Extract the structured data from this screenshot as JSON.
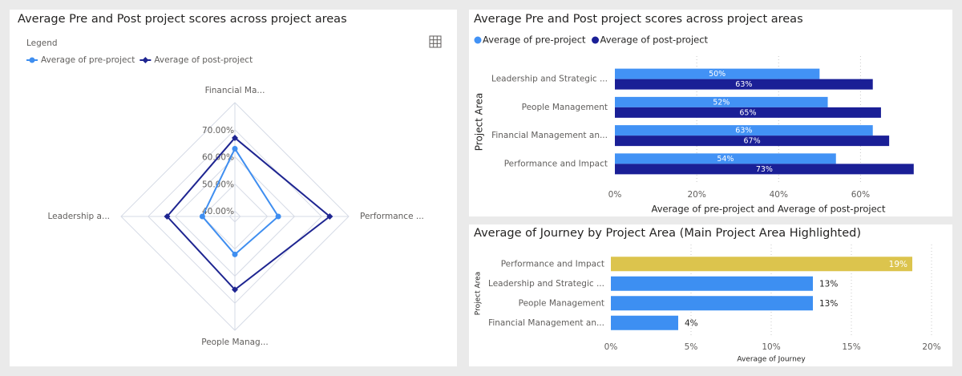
{
  "chart_data": [
    {
      "type": "radar",
      "title": "Average Pre and Post project scores across project areas",
      "legend_title": "Legend",
      "categories": [
        "Financial Ma...",
        "Performance ...",
        "People Manag...",
        "Leadership a..."
      ],
      "series": [
        {
          "name": "Average of pre-project",
          "color": "#3f8ef0",
          "marker": "circle",
          "values": [
            63,
            54,
            52,
            50
          ]
        },
        {
          "name": "Average of post-project",
          "color": "#1e2591",
          "marker": "diamond",
          "values": [
            67,
            73,
            65,
            63
          ]
        }
      ],
      "rlim": [
        38,
        80
      ],
      "rticks": [
        {
          "value": 40,
          "label": "40.00%"
        },
        {
          "value": 50,
          "label": "50.00%"
        },
        {
          "value": 60,
          "label": "60.00%"
        },
        {
          "value": 70,
          "label": "70.00%"
        }
      ]
    },
    {
      "type": "hbar-grouped",
      "title": "Average Pre and Post project scores across project areas",
      "categories": [
        "Leadership and Strategic ...",
        "People Management",
        "Financial Management an...",
        "Performance and Impact"
      ],
      "series": [
        {
          "name": "Average of pre-project",
          "color": "#4292f5",
          "values": [
            50,
            52,
            63,
            54
          ],
          "value_labels": [
            "50%",
            "52%",
            "63%",
            "54%"
          ]
        },
        {
          "name": "Average of post-project",
          "color": "#1a1f96",
          "values": [
            63,
            65,
            67,
            73
          ],
          "value_labels": [
            "63%",
            "65%",
            "67%",
            "73%"
          ]
        }
      ],
      "x_label": "Average of pre-project and Average of post-project",
      "y_label": "Project Area",
      "xlim": [
        0,
        75
      ],
      "xticks": [
        {
          "value": 0,
          "label": "0%"
        },
        {
          "value": 20,
          "label": "20%"
        },
        {
          "value": 40,
          "label": "40%"
        },
        {
          "value": 60,
          "label": "60%"
        }
      ],
      "grid": true
    },
    {
      "type": "hbar",
      "title": "Average of Journey by Project Area (Main Project Area Highlighted)",
      "categories": [
        "Performance and Impact",
        "Leadership and Strategic ...",
        "People Management",
        "Financial Management an..."
      ],
      "values": [
        18.8,
        12.6,
        12.6,
        4.2
      ],
      "value_labels": [
        "19%",
        "13%",
        "13%",
        "4%"
      ],
      "colors": [
        "#dcc44d",
        "#3d8ff2",
        "#3d8ff2",
        "#3d8ff2"
      ],
      "x_label": "Average of Journey",
      "y_label": "Project Area",
      "xlim": [
        0,
        20
      ],
      "xticks": [
        {
          "value": 0,
          "label": "0%"
        },
        {
          "value": 5,
          "label": "5%"
        },
        {
          "value": 10,
          "label": "10%"
        },
        {
          "value": 15,
          "label": "15%"
        },
        {
          "value": 20,
          "label": "20%"
        }
      ],
      "grid": true
    }
  ]
}
